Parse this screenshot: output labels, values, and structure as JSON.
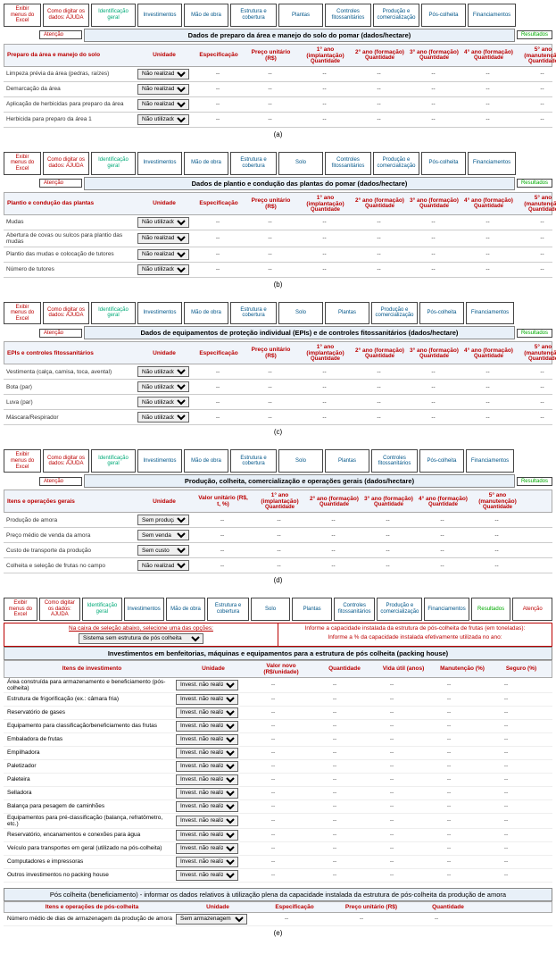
{
  "nav": {
    "exibir": "Exibir menus do Excel",
    "ajuda": "Como digitar os dados: AJUDA",
    "ident": "Identificação geral",
    "invest": "Investimentos",
    "mao": "Mão de obra",
    "estrutura": "Estrutura e cobertura",
    "plantas": "Plantas",
    "solo": "Solo",
    "controles": "Controles fitossanitários",
    "producao": "Produção e comercialização",
    "poscolheita": "Pós-colheita",
    "financiamentos": "Financiamentos",
    "resultados": "Resultados",
    "atencao": "Atenção"
  },
  "cols": {
    "unidade": "Unidade",
    "espec": "Especificação",
    "preco": "Preço unitário (R$)",
    "valor_rs_t": "Valor unitário (R$, t, %)",
    "y1i": "1° ano (implantação)",
    "y2f": "2° ano (formação)",
    "y3f": "3° ano (formação)",
    "y4f": "4° ano (formação)",
    "y5m": "5° ano (manutenção)",
    "qty": "Quantidade",
    "valor_novo": "Valor novo (R$/unidade)",
    "vida_util": "Vida útil (anos)",
    "manut": "Manutenção (%)",
    "seguro": "Seguro (%)"
  },
  "a": {
    "title": "Dados de preparo da área e manejo do solo do pomar (dados/hectare)",
    "group": "Preparo da área e manejo do solo",
    "rows": [
      {
        "item": "Limpeza prévia da área (pedras, raízes)",
        "unit": "Não realizada"
      },
      {
        "item": "Demarcação da área",
        "unit": "Não realizada"
      },
      {
        "item": "Aplicação de herbicidas para preparo da área",
        "unit": "Não realizada"
      },
      {
        "item": "Herbicida para preparo da área 1",
        "unit": "Não utilizado"
      }
    ],
    "caption": "(a)"
  },
  "b": {
    "title": "Dados de plantio e condução das plantas do pomar (dados/hectare)",
    "group": "Plantio e condução das plantas",
    "rows": [
      {
        "item": "Mudas",
        "unit": "Não utilizado"
      },
      {
        "item": "Abertura de covas ou sulcos para plantio das mudas",
        "unit": "Não realizada"
      },
      {
        "item": "Plantio das mudas e colocação de tutores",
        "unit": "Não realizada"
      },
      {
        "item": "Número de tutores",
        "unit": "Não utilizado"
      }
    ],
    "caption": "(b)"
  },
  "c": {
    "title": "Dados de equipamentos de proteção individual (EPIs) e de controles fitossanitários (dados/hectare)",
    "group": "EPIs e controles fitossanitários",
    "rows": [
      {
        "item": "Vestimenta (calça, camisa, toca, avental)",
        "unit": "Não utilizado"
      },
      {
        "item": "Bota (par)",
        "unit": "Não utilizado"
      },
      {
        "item": "Luva (par)",
        "unit": "Não utilizado"
      },
      {
        "item": "Máscara/Respirador",
        "unit": "Não utilizado"
      }
    ],
    "caption": "(c)"
  },
  "d": {
    "title": "Produção, colheita, comercialização e operações gerais (dados/hectare)",
    "group": "Itens e operações gerais",
    "rows": [
      {
        "item": "Produção de amora",
        "unit": "Sem produção"
      },
      {
        "item": "Preço médio de venda da amora",
        "unit": "Sem venda"
      },
      {
        "item": "Custo de transporte da produção",
        "unit": "Sem custo"
      },
      {
        "item": "Colheita e seleção de frutas no campo",
        "unit": "Não realizada"
      }
    ],
    "caption": "(d)"
  },
  "e": {
    "warn_left": "Na caixa de seleção abaixo, selecione uma das opções:",
    "warn_right_top": "Informe a capacidade instalada da estrutura de pós-colheita de frutas (em toneladas):",
    "warn_right_bot": "Informe a % da capacidade instalada efetivamente utilizada no ano:",
    "sistema_label": "Sistema sem estrutura de pós colheita",
    "title": "Investimentos em benfeitorias, máquinas e equipamentos para a estrutura de pós colheita (packing house)",
    "group": "Itens de investimento",
    "rows": [
      "Área construída para armazenamento e beneficiamento (pós-colheita)",
      "Estrutura de frigorificação (ex.: câmara fria)",
      "Reservatório de gases",
      "Equipamento para classificação/beneficiamento das frutas",
      "Embaladora de frutas",
      "Empilhadora",
      "Paletizador",
      "Paleteira",
      "Selladora",
      "Balança para pesagem de caminhões",
      "Equipamentos para pré-classificação (balança, refratômetro, etc.)",
      "Reservatório, encanamentos e conexões para água",
      "Veículo para transportes em geral (utilizado na pós-colheita)",
      "Computadores e impressoras",
      "Outros investimentos no packing house"
    ],
    "unit_sel": "Invest. não realiz.",
    "sub_title": "Pós colheita (beneficiamento) - informar os dados relativos à utilização plena da capacidade instalada da estrutura de pós-colheita da produção de amora",
    "sub_group": "Itens e operações de pós-colheita",
    "sub_row": "Número médio de dias de armazenagem da produção de amora",
    "sub_unit": "Sem armazenagem",
    "caption": "(e)"
  }
}
